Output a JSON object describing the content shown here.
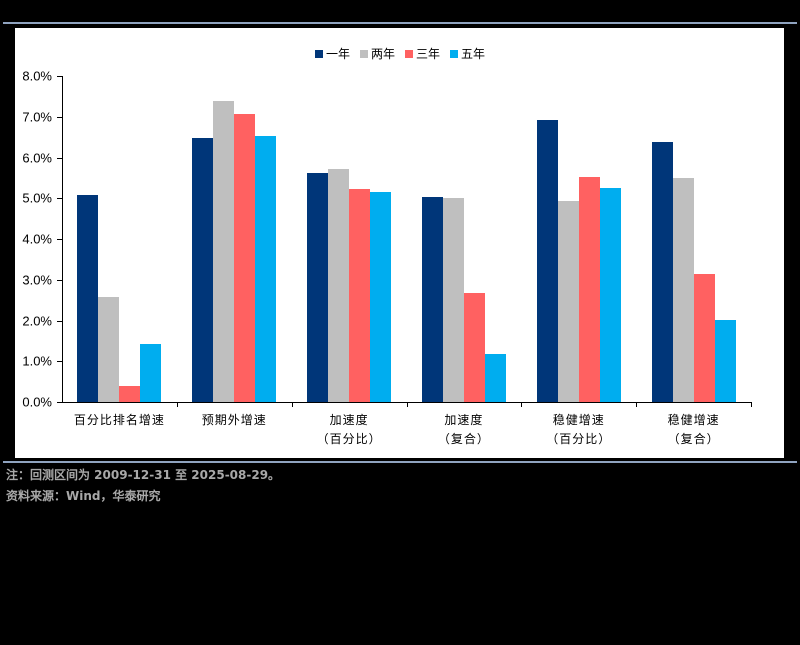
{
  "legend": [
    {
      "label": "一年",
      "color": "#003679"
    },
    {
      "label": "两年",
      "color": "#bfbfbf"
    },
    {
      "label": "三年",
      "color": "#ff6161"
    },
    {
      "label": "五年",
      "color": "#00adef"
    }
  ],
  "y_ticks": [
    "8.0%",
    "7.0%",
    "6.0%",
    "5.0%",
    "4.0%",
    "3.0%",
    "2.0%",
    "1.0%",
    "0.0%"
  ],
  "x_labels": [
    {
      "line1": "百分比排名增速",
      "line2": ""
    },
    {
      "line1": "预期外增速",
      "line2": ""
    },
    {
      "line1": "加速度",
      "line2": "（百分比）"
    },
    {
      "line1": "加速度",
      "line2": "（复合）"
    },
    {
      "line1": "稳健增速",
      "line2": "（百分比）"
    },
    {
      "line1": "稳健增速",
      "line2": "（复合）"
    }
  ],
  "footer": {
    "note": "注：回测区间为 2009-12-31 至 2025-08-29。",
    "source": "资料来源：Wind，华泰研究"
  },
  "chart_data": {
    "type": "bar",
    "title": "",
    "xlabel": "",
    "ylabel": "",
    "ylim": [
      0,
      8.0
    ],
    "y_unit": "%",
    "grid": false,
    "legend_position": "top",
    "categories": [
      "百分比排名增速",
      "预期外增速",
      "加速度（百分比）",
      "加速度（复合）",
      "稳健增速（百分比）",
      "稳健增速（复合）"
    ],
    "series": [
      {
        "name": "一年",
        "color": "#003679",
        "values": [
          5.08,
          6.48,
          5.62,
          5.03,
          6.92,
          6.38
        ]
      },
      {
        "name": "两年",
        "color": "#bfbfbf",
        "values": [
          2.58,
          7.39,
          5.72,
          5.0,
          4.93,
          5.5
        ]
      },
      {
        "name": "三年",
        "color": "#ff6161",
        "values": [
          0.39,
          7.07,
          5.23,
          2.67,
          5.52,
          3.14
        ]
      },
      {
        "name": "五年",
        "color": "#00adef",
        "values": [
          1.42,
          6.53,
          5.15,
          1.18,
          5.25,
          2.01
        ]
      }
    ]
  }
}
